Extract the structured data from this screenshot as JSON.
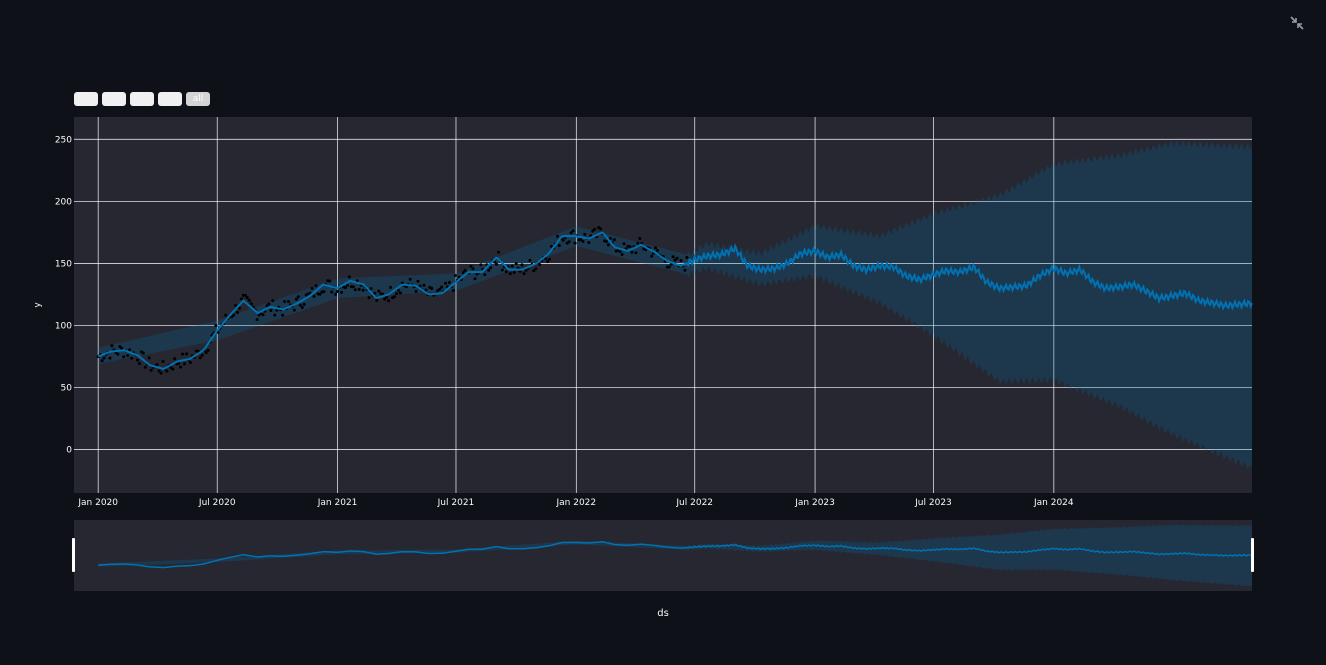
{
  "toolbar": {
    "range_buttons": [
      "",
      "",
      "",
      "",
      "all"
    ]
  },
  "icons": {
    "exit_fullscreen": "collapse-arrows-icon"
  },
  "colors": {
    "background": "#0e1117",
    "plot_bg": "#262730",
    "forecast_line": "#0072b2",
    "uncertainty_band": "#0072b2",
    "actual_points": "#000000",
    "grid": "#ffffff"
  },
  "chart_data": {
    "type": "line",
    "xlabel": "ds",
    "ylabel": "y",
    "x_range": [
      "2019-11-25",
      "2024-10-30"
    ],
    "ylim": [
      -35,
      268
    ],
    "y_ticks": [
      0,
      50,
      100,
      150,
      200,
      250
    ],
    "x_ticks": [
      {
        "date": "2020-01-01",
        "label": "Jan 2020"
      },
      {
        "date": "2020-07-01",
        "label": "Jul 2020"
      },
      {
        "date": "2021-01-01",
        "label": "Jan 2021"
      },
      {
        "date": "2021-07-01",
        "label": "Jul 2021"
      },
      {
        "date": "2022-01-01",
        "label": "Jan 2022"
      },
      {
        "date": "2022-07-01",
        "label": "Jul 2022"
      },
      {
        "date": "2023-01-01",
        "label": "Jan 2023"
      },
      {
        "date": "2023-07-01",
        "label": "Jul 2023"
      },
      {
        "date": "2024-01-01",
        "label": "Jan 2024"
      }
    ],
    "grid": true,
    "history_end": "2022-06-20",
    "series": [
      {
        "kind": "forecast",
        "points": [
          [
            "2020-01-01",
            75
          ],
          [
            "2020-01-20",
            79
          ],
          [
            "2020-02-10",
            80
          ],
          [
            "2020-03-01",
            76
          ],
          [
            "2020-03-20",
            68
          ],
          [
            "2020-04-10",
            65
          ],
          [
            "2020-05-01",
            71
          ],
          [
            "2020-05-20",
            73
          ],
          [
            "2020-06-10",
            80
          ],
          [
            "2020-07-01",
            96
          ],
          [
            "2020-07-20",
            108
          ],
          [
            "2020-08-10",
            120
          ],
          [
            "2020-09-01",
            110
          ],
          [
            "2020-09-20",
            115
          ],
          [
            "2020-10-10",
            113
          ],
          [
            "2020-11-01",
            118
          ],
          [
            "2020-11-20",
            124
          ],
          [
            "2020-12-10",
            133
          ],
          [
            "2021-01-01",
            130
          ],
          [
            "2021-01-20",
            136
          ],
          [
            "2021-02-10",
            133
          ],
          [
            "2021-03-01",
            122
          ],
          [
            "2021-03-20",
            125
          ],
          [
            "2021-04-10",
            133
          ],
          [
            "2021-05-01",
            132
          ],
          [
            "2021-05-20",
            125
          ],
          [
            "2021-06-10",
            126
          ],
          [
            "2021-07-01",
            135
          ],
          [
            "2021-07-20",
            143
          ],
          [
            "2021-08-10",
            143
          ],
          [
            "2021-09-01",
            155
          ],
          [
            "2021-09-20",
            145
          ],
          [
            "2021-10-10",
            145
          ],
          [
            "2021-11-01",
            150
          ],
          [
            "2021-11-20",
            158
          ],
          [
            "2021-12-10",
            172
          ],
          [
            "2022-01-01",
            172
          ],
          [
            "2022-01-20",
            170
          ],
          [
            "2022-02-10",
            175
          ],
          [
            "2022-03-01",
            163
          ],
          [
            "2022-03-20",
            160
          ],
          [
            "2022-04-10",
            165
          ],
          [
            "2022-05-01",
            159
          ],
          [
            "2022-05-20",
            152
          ],
          [
            "2022-06-10",
            148
          ],
          [
            "2022-07-01",
            153
          ],
          [
            "2022-07-20",
            156
          ],
          [
            "2022-08-10",
            157
          ],
          [
            "2022-09-01",
            162
          ],
          [
            "2022-09-20",
            148
          ],
          [
            "2022-10-10",
            145
          ],
          [
            "2022-11-01",
            146
          ],
          [
            "2022-11-20",
            150
          ],
          [
            "2022-12-10",
            158
          ],
          [
            "2023-01-01",
            160
          ],
          [
            "2023-01-20",
            155
          ],
          [
            "2023-02-10",
            157
          ],
          [
            "2023-03-01",
            148
          ],
          [
            "2023-03-20",
            145
          ],
          [
            "2023-04-10",
            148
          ],
          [
            "2023-05-01",
            147
          ],
          [
            "2023-05-20",
            140
          ],
          [
            "2023-06-10",
            137
          ],
          [
            "2023-07-01",
            141
          ],
          [
            "2023-07-20",
            144
          ],
          [
            "2023-08-10",
            143
          ],
          [
            "2023-09-01",
            147
          ],
          [
            "2023-09-20",
            135
          ],
          [
            "2023-10-10",
            130
          ],
          [
            "2023-11-01",
            131
          ],
          [
            "2023-11-20",
            132
          ],
          [
            "2023-12-10",
            140
          ],
          [
            "2024-01-01",
            146
          ],
          [
            "2024-01-20",
            142
          ],
          [
            "2024-02-10",
            145
          ],
          [
            "2024-03-01",
            135
          ],
          [
            "2024-03-20",
            130
          ],
          [
            "2024-04-10",
            131
          ],
          [
            "2024-05-01",
            133
          ],
          [
            "2024-05-20",
            128
          ],
          [
            "2024-06-10",
            122
          ],
          [
            "2024-07-01",
            124
          ],
          [
            "2024-07-20",
            126
          ],
          [
            "2024-08-10",
            120
          ],
          [
            "2024-09-01",
            118
          ],
          [
            "2024-09-20",
            116
          ],
          [
            "2024-10-30",
            118
          ]
        ]
      },
      {
        "kind": "band",
        "upper": [
          [
            "2020-01-01",
            82
          ],
          [
            "2020-07-01",
            104
          ],
          [
            "2021-01-01",
            138
          ],
          [
            "2021-07-01",
            142
          ],
          [
            "2022-01-01",
            180
          ],
          [
            "2022-06-20",
            157
          ],
          [
            "2022-07-20",
            166
          ],
          [
            "2022-10-10",
            158
          ],
          [
            "2023-01-01",
            180
          ],
          [
            "2023-04-10",
            172
          ],
          [
            "2023-07-01",
            190
          ],
          [
            "2023-10-10",
            205
          ],
          [
            "2024-01-01",
            230
          ],
          [
            "2024-04-10",
            237
          ],
          [
            "2024-07-01",
            247
          ],
          [
            "2024-10-30",
            244
          ]
        ],
        "lower": [
          [
            "2020-01-01",
            69
          ],
          [
            "2020-07-01",
            88
          ],
          [
            "2021-01-01",
            122
          ],
          [
            "2021-07-01",
            128
          ],
          [
            "2022-01-01",
            164
          ],
          [
            "2022-06-20",
            141
          ],
          [
            "2022-07-20",
            146
          ],
          [
            "2022-10-10",
            133
          ],
          [
            "2023-01-01",
            140
          ],
          [
            "2023-04-10",
            118
          ],
          [
            "2023-07-01",
            92
          ],
          [
            "2023-10-10",
            55
          ],
          [
            "2024-01-01",
            56
          ],
          [
            "2024-04-10",
            35
          ],
          [
            "2024-07-01",
            12
          ],
          [
            "2024-10-30",
            -15
          ]
        ]
      }
    ]
  }
}
